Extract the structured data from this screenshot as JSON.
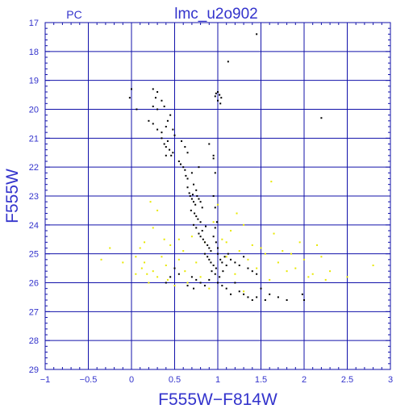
{
  "header": {
    "panel_label": "PC",
    "title": "lmc_u2o902"
  },
  "colors": {
    "axis_text": "#3333cc",
    "grid": "#1111aa",
    "frame": "#1111aa",
    "black_points": "#000000",
    "yellow_points": "#e8e800",
    "background": "#ffffff"
  },
  "chart_data": {
    "type": "scatter",
    "title": "lmc_u2o902",
    "xlabel": "F555W−F814W",
    "ylabel": "F555W",
    "xlim": [
      -1,
      3
    ],
    "ylim": [
      29,
      17
    ],
    "y_inverted": true,
    "grid": true,
    "x_ticks": [
      -1,
      -0.5,
      0,
      0.5,
      1,
      1.5,
      2,
      2.5,
      3
    ],
    "x_tick_labels": [
      "−1",
      "−0.5",
      "0",
      "0.5",
      "1",
      "1.5",
      "2",
      "2.5",
      "3"
    ],
    "y_ticks": [
      17,
      18,
      19,
      20,
      21,
      22,
      23,
      24,
      25,
      26,
      27,
      28,
      29
    ],
    "y_tick_labels": [
      "17",
      "18",
      "19",
      "20",
      "21",
      "22",
      "23",
      "24",
      "25",
      "26",
      "27",
      "28",
      "29"
    ],
    "series": [
      {
        "color": "#000000",
        "points": [
          [
            1.45,
            17.4
          ],
          [
            1.12,
            18.35
          ],
          [
            1.0,
            19.4
          ],
          [
            1.02,
            19.5
          ],
          [
            0.98,
            19.45
          ],
          [
            1.04,
            19.6
          ],
          [
            1.0,
            19.7
          ],
          [
            1.03,
            19.8
          ],
          [
            0.97,
            19.55
          ],
          [
            -0.02,
            19.6
          ],
          [
            0.0,
            19.3
          ],
          [
            0.06,
            20.0
          ],
          [
            0.25,
            19.3
          ],
          [
            0.3,
            19.4
          ],
          [
            0.28,
            19.6
          ],
          [
            0.35,
            19.7
          ],
          [
            0.25,
            19.9
          ],
          [
            0.3,
            20.0
          ],
          [
            0.38,
            19.9
          ],
          [
            0.2,
            20.4
          ],
          [
            0.25,
            20.5
          ],
          [
            0.3,
            20.7
          ],
          [
            0.35,
            20.8
          ],
          [
            0.4,
            20.6
          ],
          [
            0.45,
            20.2
          ],
          [
            0.42,
            20.4
          ],
          [
            0.48,
            20.7
          ],
          [
            0.5,
            20.9
          ],
          [
            2.2,
            20.3
          ],
          [
            0.35,
            21.0
          ],
          [
            0.38,
            21.2
          ],
          [
            0.4,
            21.3
          ],
          [
            0.42,
            21.1
          ],
          [
            0.44,
            21.4
          ],
          [
            0.46,
            21.6
          ],
          [
            0.48,
            21.5
          ],
          [
            0.4,
            21.6
          ],
          [
            0.58,
            21.1
          ],
          [
            0.62,
            21.3
          ],
          [
            0.65,
            21.5
          ],
          [
            0.9,
            21.2
          ],
          [
            0.95,
            21.6
          ],
          [
            0.55,
            21.8
          ],
          [
            0.57,
            21.9
          ],
          [
            0.6,
            22.0
          ],
          [
            0.62,
            22.1
          ],
          [
            0.63,
            22.3
          ],
          [
            0.65,
            22.4
          ],
          [
            0.7,
            22.2
          ],
          [
            0.72,
            22.6
          ],
          [
            0.75,
            22.8
          ],
          [
            0.78,
            22.0
          ],
          [
            0.95,
            21.7
          ],
          [
            0.97,
            22.2
          ],
          [
            0.65,
            22.7
          ],
          [
            0.67,
            22.9
          ],
          [
            0.68,
            23.0
          ],
          [
            0.7,
            23.1
          ],
          [
            0.72,
            23.2
          ],
          [
            0.74,
            23.3
          ],
          [
            0.71,
            22.95
          ],
          [
            0.76,
            23.0
          ],
          [
            0.78,
            23.1
          ],
          [
            0.8,
            23.2
          ],
          [
            0.82,
            23.4
          ],
          [
            0.69,
            23.5
          ],
          [
            0.73,
            23.6
          ],
          [
            0.75,
            23.7
          ],
          [
            0.77,
            23.8
          ],
          [
            0.8,
            23.9
          ],
          [
            0.95,
            23.0
          ],
          [
            0.97,
            23.4
          ],
          [
            0.99,
            23.9
          ],
          [
            0.72,
            24.0
          ],
          [
            0.75,
            24.1
          ],
          [
            0.78,
            24.3
          ],
          [
            0.8,
            24.4
          ],
          [
            0.83,
            24.5
          ],
          [
            0.85,
            24.6
          ],
          [
            0.88,
            24.7
          ],
          [
            0.9,
            24.8
          ],
          [
            0.92,
            24.9
          ],
          [
            0.82,
            24.2
          ],
          [
            0.95,
            24.4
          ],
          [
            0.98,
            24.6
          ],
          [
            1.0,
            24.8
          ],
          [
            0.97,
            24.1
          ],
          [
            0.86,
            24.05
          ],
          [
            0.85,
            25.0
          ],
          [
            0.88,
            25.1
          ],
          [
            0.9,
            25.2
          ],
          [
            0.92,
            25.3
          ],
          [
            0.95,
            25.4
          ],
          [
            0.98,
            25.5
          ],
          [
            1.0,
            25.0
          ],
          [
            1.03,
            25.2
          ],
          [
            1.05,
            25.3
          ],
          [
            1.08,
            25.1
          ],
          [
            1.1,
            25.4
          ],
          [
            1.12,
            25.0
          ],
          [
            1.15,
            25.2
          ],
          [
            1.2,
            25.3
          ],
          [
            1.25,
            25.4
          ],
          [
            1.3,
            25.1
          ],
          [
            1.35,
            25.5
          ],
          [
            1.4,
            25.6
          ],
          [
            1.45,
            25.7
          ],
          [
            0.93,
            25.6
          ],
          [
            0.97,
            25.7
          ],
          [
            1.02,
            25.8
          ],
          [
            1.06,
            25.6
          ],
          [
            0.7,
            25.8
          ],
          [
            0.75,
            25.9
          ],
          [
            0.8,
            26.0
          ],
          [
            0.85,
            26.1
          ],
          [
            0.9,
            25.9
          ],
          [
            1.0,
            26.0
          ],
          [
            1.05,
            26.1
          ],
          [
            1.1,
            26.2
          ],
          [
            1.2,
            26.0
          ],
          [
            1.25,
            26.3
          ],
          [
            1.3,
            26.4
          ],
          [
            1.35,
            26.5
          ],
          [
            1.4,
            26.6
          ],
          [
            1.45,
            26.5
          ],
          [
            1.5,
            26.2
          ],
          [
            1.6,
            26.4
          ],
          [
            1.7,
            26.5
          ],
          [
            1.8,
            26.6
          ],
          [
            1.98,
            26.4
          ],
          [
            2.0,
            26.6
          ],
          [
            0.65,
            26.1
          ],
          [
            0.72,
            26.2
          ],
          [
            0.45,
            25.8
          ],
          [
            0.4,
            26.0
          ],
          [
            0.5,
            25.5
          ],
          [
            0.55,
            25.7
          ],
          [
            1.15,
            26.4
          ],
          [
            1.55,
            26.6
          ]
        ]
      },
      {
        "color": "#e8e800",
        "points": [
          [
            -0.35,
            25.2
          ],
          [
            -0.25,
            24.8
          ],
          [
            -0.1,
            25.3
          ],
          [
            0.05,
            25.1
          ],
          [
            0.1,
            24.8
          ],
          [
            0.12,
            25.5
          ],
          [
            0.15,
            25.3
          ],
          [
            0.18,
            25.7
          ],
          [
            0.2,
            26.0
          ],
          [
            0.25,
            24.1
          ],
          [
            0.25,
            25.6
          ],
          [
            0.3,
            25.8
          ],
          [
            0.35,
            25.1
          ],
          [
            0.38,
            24.5
          ],
          [
            0.4,
            25.4
          ],
          [
            0.42,
            25.9
          ],
          [
            0.45,
            24.7
          ],
          [
            0.5,
            26.1
          ],
          [
            0.55,
            25.2
          ],
          [
            0.6,
            24.9
          ],
          [
            0.62,
            25.6
          ],
          [
            0.65,
            26.0
          ],
          [
            0.7,
            24.4
          ],
          [
            0.75,
            25.3
          ],
          [
            0.8,
            25.8
          ],
          [
            0.85,
            24.6
          ],
          [
            0.9,
            26.2
          ],
          [
            0.95,
            23.9
          ],
          [
            1.05,
            24.5
          ],
          [
            1.1,
            25.1
          ],
          [
            1.15,
            24.2
          ],
          [
            1.2,
            25.7
          ],
          [
            1.22,
            23.6
          ],
          [
            1.25,
            24.9
          ],
          [
            1.3,
            26.3
          ],
          [
            1.35,
            25.2
          ],
          [
            1.4,
            24.7
          ],
          [
            1.45,
            25.5
          ],
          [
            1.5,
            24.8
          ],
          [
            1.55,
            25.0
          ],
          [
            1.6,
            25.9
          ],
          [
            1.62,
            22.5
          ],
          [
            1.65,
            24.3
          ],
          [
            1.7,
            25.3
          ],
          [
            1.75,
            24.9
          ],
          [
            1.8,
            25.6
          ],
          [
            1.85,
            25.0
          ],
          [
            1.9,
            25.5
          ],
          [
            1.95,
            24.6
          ],
          [
            2.0,
            25.2
          ],
          [
            2.05,
            25.8
          ],
          [
            2.1,
            25.7
          ],
          [
            2.15,
            24.7
          ],
          [
            2.2,
            25.1
          ],
          [
            2.25,
            25.9
          ],
          [
            2.3,
            25.6
          ],
          [
            2.5,
            25.8
          ],
          [
            2.8,
            25.4
          ],
          [
            0.22,
            23.2
          ],
          [
            0.3,
            23.5
          ],
          [
            0.55,
            24.5
          ],
          [
            1.0,
            23.3
          ],
          [
            1.3,
            24.0
          ],
          [
            1.1,
            24.6
          ],
          [
            0.05,
            25.7
          ],
          [
            0.15,
            24.6
          ]
        ]
      }
    ]
  }
}
